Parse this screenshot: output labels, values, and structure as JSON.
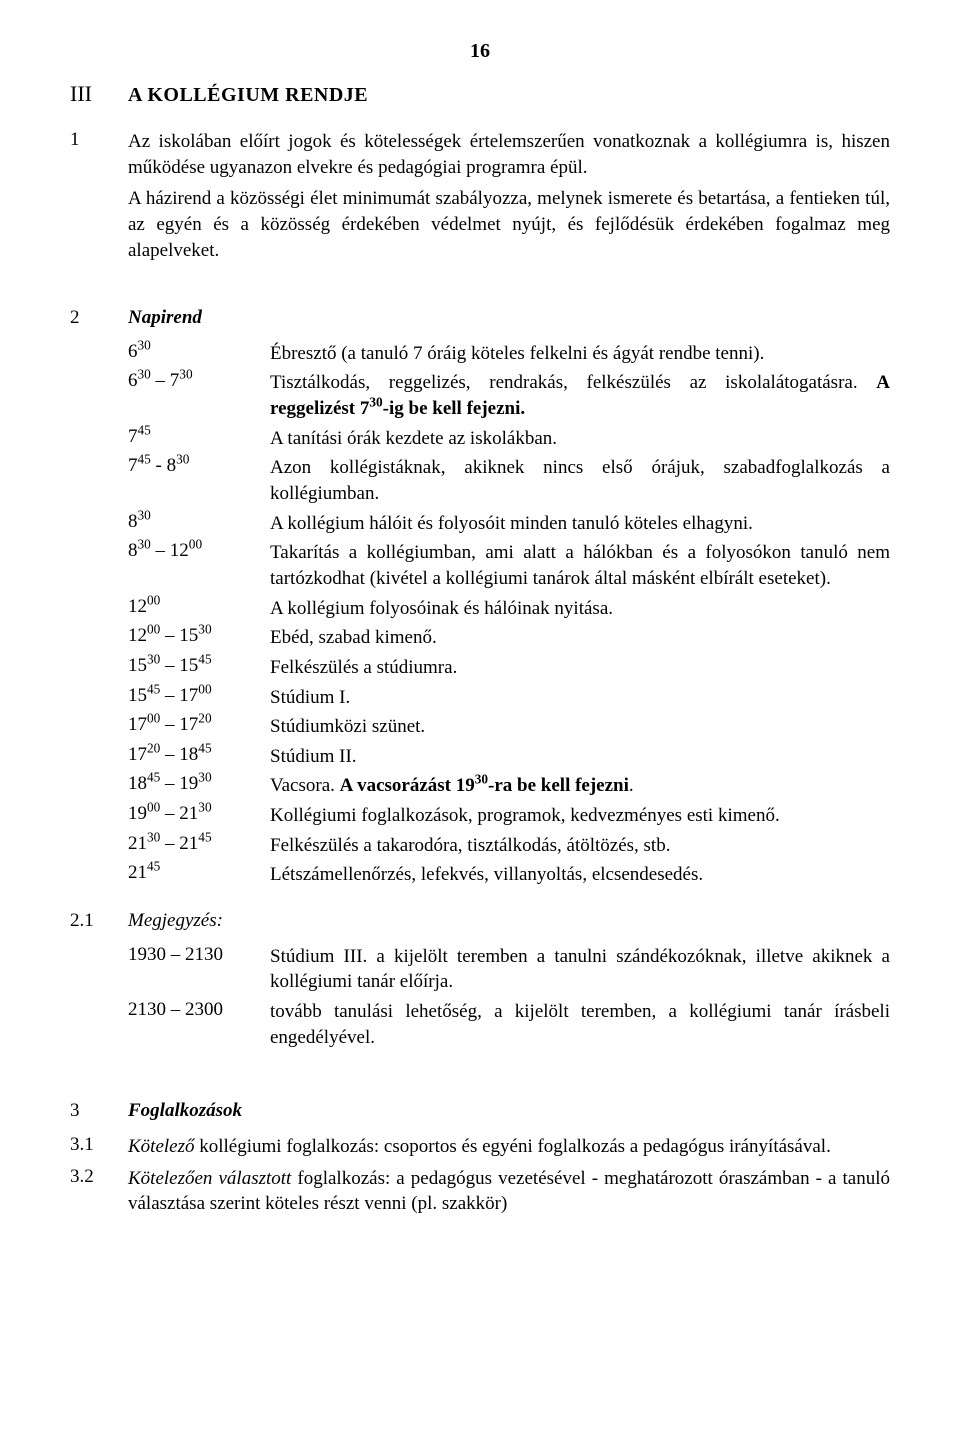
{
  "page_number": "16",
  "heading_num": "III",
  "heading_text": "A KOLLÉGIUM RENDJE",
  "intro_num": "1",
  "intro_p1": "Az iskolában előírt jogok és kötelességek értelemszerűen vonatkoznak a kollégiumra is, hiszen működése ugyanazon elvekre és pedagógiai programra épül.",
  "intro_p2": "A házirend a közösségi élet minimumát szabályozza, melynek ismerete és betartása, a fentieken túl, az egyén és a közösség érdekében védelmet nyújt, és fejlődésük érdekében fogalmaz meg alapelveket.",
  "sec2_num": "2",
  "sec2_title": "Napirend",
  "schedule": [
    {
      "time_html": "6<sup>30</sup>",
      "desc_html": "Ébresztő (a tanuló 7 óráig köteles felkelni és ágyát rendbe tenni)."
    },
    {
      "time_html": "6<sup>30</sup> – 7<sup>30</sup>",
      "desc_html": "Tisztálkodás, reggelizés, rendrakás, felkészülés az iskolalátogatásra. <b>A reggelizést 7<sup>30</sup>-ig be kell fejezni.</b>"
    },
    {
      "time_html": "7<sup>45</sup>",
      "desc_html": "A tanítási órák kezdete az iskolákban."
    },
    {
      "time_html": "7<sup>45</sup> - 8<sup>30</sup>",
      "desc_html": "Azon kollégistáknak, akiknek nincs első órájuk, szabadfoglalkozás a kollégiumban."
    },
    {
      "time_html": "8<sup>30</sup>",
      "desc_html": "A kollégium hálóit és folyosóit minden tanuló köteles elhagyni."
    },
    {
      "time_html": "8<sup>30</sup> – 12<sup>00</sup>",
      "desc_html": "Takarítás a kollégiumban, ami alatt a hálókban és a folyosókon tanuló nem tartózkodhat (kivétel a kollégiumi tanárok által másként elbírált eseteket)."
    },
    {
      "time_html": "12<sup>00</sup>",
      "desc_html": "A kollégium folyosóinak és hálóinak nyitása."
    },
    {
      "time_html": "12<sup>00</sup> – 15<sup>30</sup>",
      "desc_html": "Ebéd, szabad kimenő."
    },
    {
      "time_html": "15<sup>30</sup> – 15<sup>45</sup>",
      "desc_html": "Felkészülés a stúdiumra."
    },
    {
      "time_html": "15<sup>45</sup> – 17<sup>00</sup>",
      "desc_html": "Stúdium I."
    },
    {
      "time_html": "17<sup>00</sup> – 17<sup>20</sup>",
      "desc_html": "Stúdiumközi szünet."
    },
    {
      "time_html": "17<sup>20</sup> – 18<sup>45</sup>",
      "desc_html": "Stúdium II."
    },
    {
      "time_html": "18<sup>45</sup> – 19<sup>30</sup>",
      "desc_html": "Vacsora. <b>A vacsorázást 19<sup>30</sup>-ra be kell fejezni</b>."
    },
    {
      "time_html": "19<sup>00</sup> – 21<sup>30</sup>",
      "desc_html": "Kollégiumi foglalkozások, programok, kedvezményes esti kimenő."
    },
    {
      "time_html": "21<sup>30</sup> – 21<sup>45</sup>",
      "desc_html": "Felkészülés a takarodóra, tisztálkodás, átöltözés, stb."
    },
    {
      "time_html": "21<sup>45</sup>",
      "desc_html": "Létszámellenőrzés, lefekvés, villanyoltás, elcsendesedés."
    }
  ],
  "sec21_num": "2.1",
  "sec21_title": "Megjegyzés:",
  "notes": [
    {
      "time": "1930 – 2130",
      "desc": "Stúdium III. a kijelölt teremben a tanulni szándékozóknak, illetve akiknek a kollégiumi tanár előírja."
    },
    {
      "time": "2130 – 2300",
      "desc": "tovább tanulási lehetőség, a kijelölt teremben, a kollégiumi tanár írásbeli engedélyével."
    }
  ],
  "sec3_num": "3",
  "sec3_title": "Foglalkozások",
  "sec31_num": "3.1",
  "sec31_html": "<i>Kötelező</i> kollégiumi foglalkozás: csoportos és egyéni foglalkozás a pedagógus irányításával.",
  "sec32_num": "3.2",
  "sec32_html": "<i>Kötelezően választott</i> foglalkozás: a pedagógus vezetésével - meghatározott óraszámban - a tanuló választása szerint köteles részt venni (pl. szakkör)"
}
